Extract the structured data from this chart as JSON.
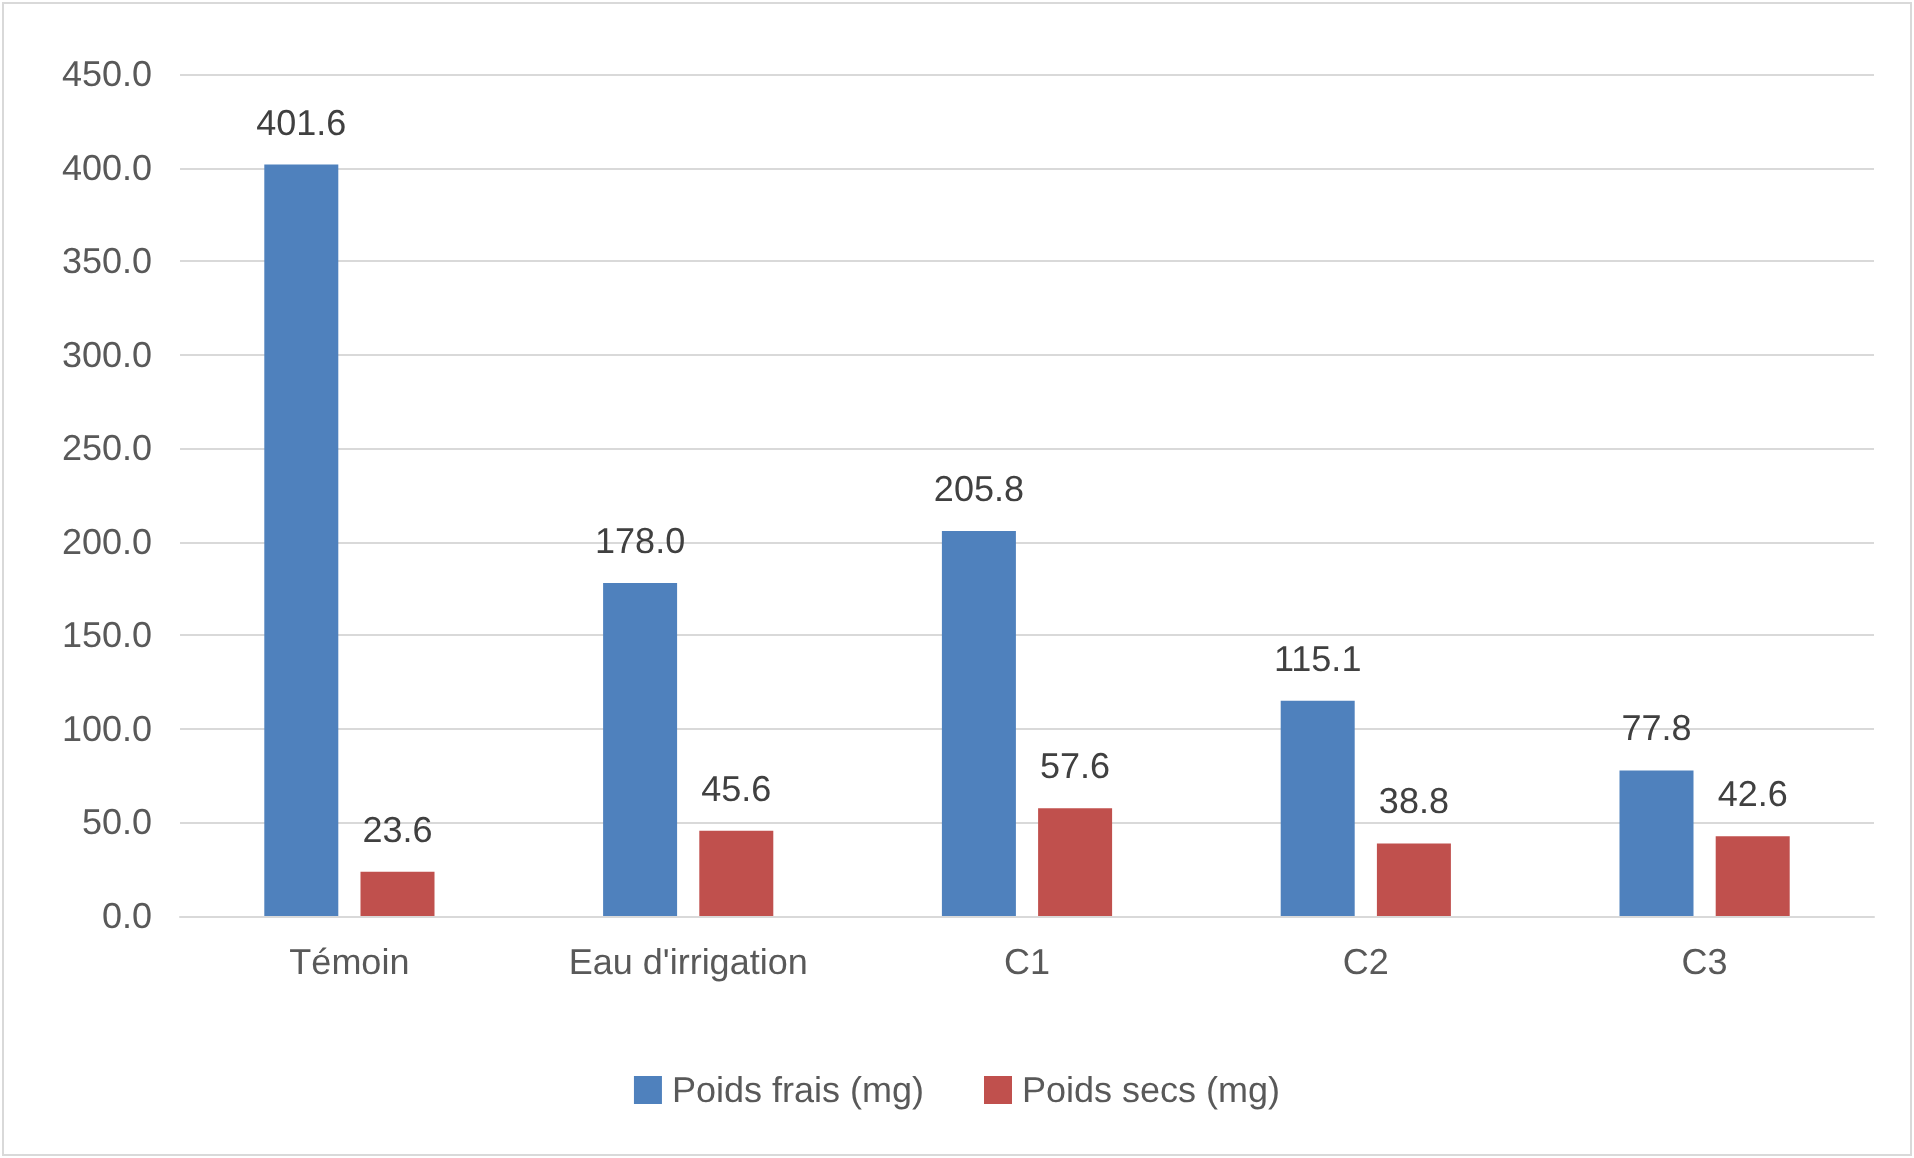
{
  "chart_data": {
    "type": "bar",
    "categories": [
      "Témoin",
      "Eau d'irrigation",
      "C1",
      "C2",
      "C3"
    ],
    "series": [
      {
        "name": "Poids frais (mg)",
        "color": "#4f81bd",
        "values": [
          401.6,
          178.0,
          205.8,
          115.1,
          77.8
        ],
        "value_labels": [
          "401.6",
          "178.0",
          "205.8",
          "115.1",
          "77.8"
        ]
      },
      {
        "name": "Poids secs (mg)",
        "color": "#c0504d",
        "values": [
          23.6,
          45.6,
          57.6,
          38.8,
          42.6
        ],
        "value_labels": [
          "23.6",
          "45.6",
          "57.6",
          "38.8",
          "42.6"
        ]
      }
    ],
    "ylim": [
      0,
      450
    ],
    "yticks": [
      {
        "value": 0,
        "label": "0.0"
      },
      {
        "value": 50,
        "label": "50.0"
      },
      {
        "value": 100,
        "label": "100.0"
      },
      {
        "value": 150,
        "label": "150.0"
      },
      {
        "value": 200,
        "label": "200.0"
      },
      {
        "value": 250,
        "label": "250.0"
      },
      {
        "value": 300,
        "label": "300.0"
      },
      {
        "value": 350,
        "label": "350.0"
      },
      {
        "value": 400,
        "label": "400.0"
      },
      {
        "value": 450,
        "label": "450.0"
      }
    ],
    "grid": "y",
    "legend": "bottom"
  }
}
